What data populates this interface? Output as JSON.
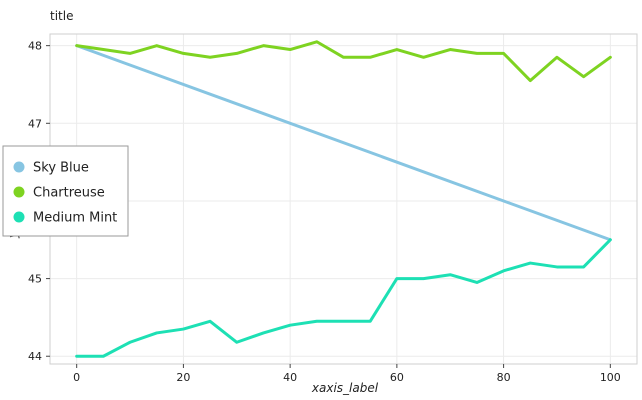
{
  "chart_data": {
    "type": "line",
    "title": "title",
    "xlabel": "xaxis_label",
    "ylabel": "yaxis_label",
    "xlim": [
      -5,
      105
    ],
    "ylim": [
      43.9,
      48.15
    ],
    "xticks": [
      0,
      20,
      40,
      60,
      80,
      100
    ],
    "yticks": [
      44,
      45,
      46,
      47,
      48
    ],
    "grid": true,
    "legend_position": "middle-left",
    "series": [
      {
        "name": "Sky Blue",
        "color": "#87c5e2",
        "x": [
          0,
          100
        ],
        "y": [
          48.0,
          45.5
        ]
      },
      {
        "name": "Chartreuse",
        "color": "#7ed321",
        "x": [
          0,
          5,
          10,
          15,
          20,
          25,
          30,
          35,
          40,
          45,
          50,
          55,
          60,
          65,
          70,
          75,
          80,
          85,
          90,
          95,
          100
        ],
        "y": [
          48.0,
          47.95,
          47.9,
          48.0,
          47.9,
          47.85,
          47.9,
          48.0,
          47.95,
          48.05,
          47.85,
          47.85,
          47.95,
          47.85,
          47.95,
          47.9,
          47.9,
          47.55,
          47.85,
          47.6,
          47.85
        ]
      },
      {
        "name": "Medium Mint",
        "color": "#1de0b4",
        "x": [
          0,
          5,
          10,
          15,
          20,
          25,
          30,
          35,
          40,
          45,
          50,
          55,
          60,
          65,
          70,
          75,
          80,
          85,
          90,
          95,
          100
        ],
        "y": [
          44.0,
          44.0,
          44.18,
          44.3,
          44.35,
          44.45,
          44.18,
          44.3,
          44.4,
          44.45,
          44.45,
          44.45,
          45.0,
          45.0,
          45.05,
          44.95,
          45.1,
          45.2,
          45.15,
          45.15,
          45.5
        ]
      }
    ]
  }
}
